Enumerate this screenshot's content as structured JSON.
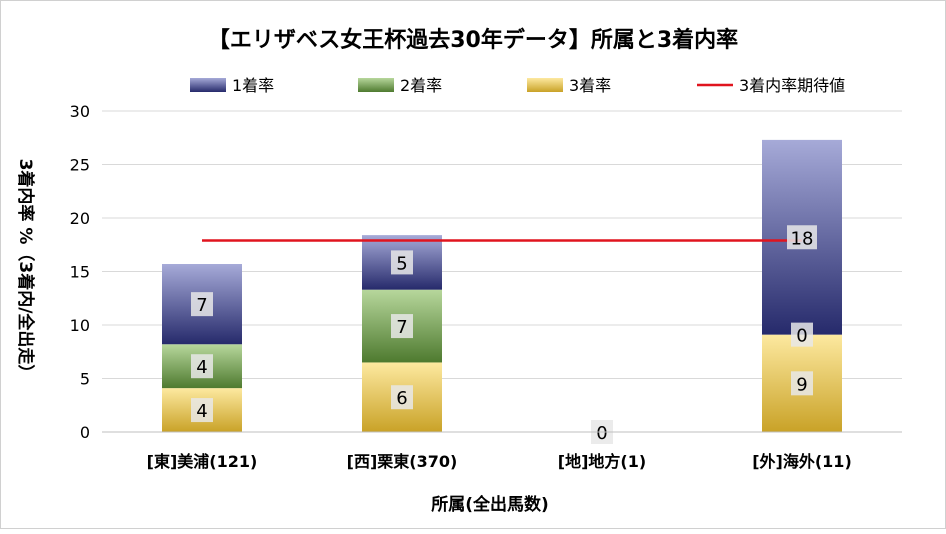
{
  "chart_data": {
    "type": "bar",
    "stacked": true,
    "title": "【エリザベス女王杯過去30年データ】所属と3着内率",
    "xlabel": "所属(全出馬数)",
    "ylabel": "3着内率 %（3着内/全出走）",
    "ylim": [
      0,
      30
    ],
    "yticks": [
      "0",
      "5",
      "10",
      "15",
      "20",
      "25",
      "30"
    ],
    "grid": true,
    "legend_position": "top",
    "categories": [
      "[東]美浦(121)",
      "[西]栗東(370)",
      "[地]地方(1)",
      "[外]海外(11)"
    ],
    "series": [
      {
        "name": "3着率",
        "values": [
          4.1,
          6.5,
          0,
          9.1
        ],
        "labels": [
          "4",
          "6",
          "0",
          "9"
        ],
        "color_top": "#fde9a0",
        "color_bottom": "#c9a227"
      },
      {
        "name": "2着率",
        "values": [
          4.1,
          6.8,
          0,
          0
        ],
        "labels": [
          "4",
          "7",
          "",
          "0"
        ],
        "color_top": "#b7d79c",
        "color_bottom": "#4e7a2f"
      },
      {
        "name": "1着率",
        "values": [
          7.5,
          5.1,
          0,
          18.2
        ],
        "labels": [
          "7",
          "5",
          "",
          "18"
        ],
        "color_top": "#a6aad8",
        "color_bottom": "#262a6b"
      }
    ],
    "line": {
      "name": "3着内率期待値",
      "value": 17.9,
      "color": "#e0141e"
    }
  }
}
